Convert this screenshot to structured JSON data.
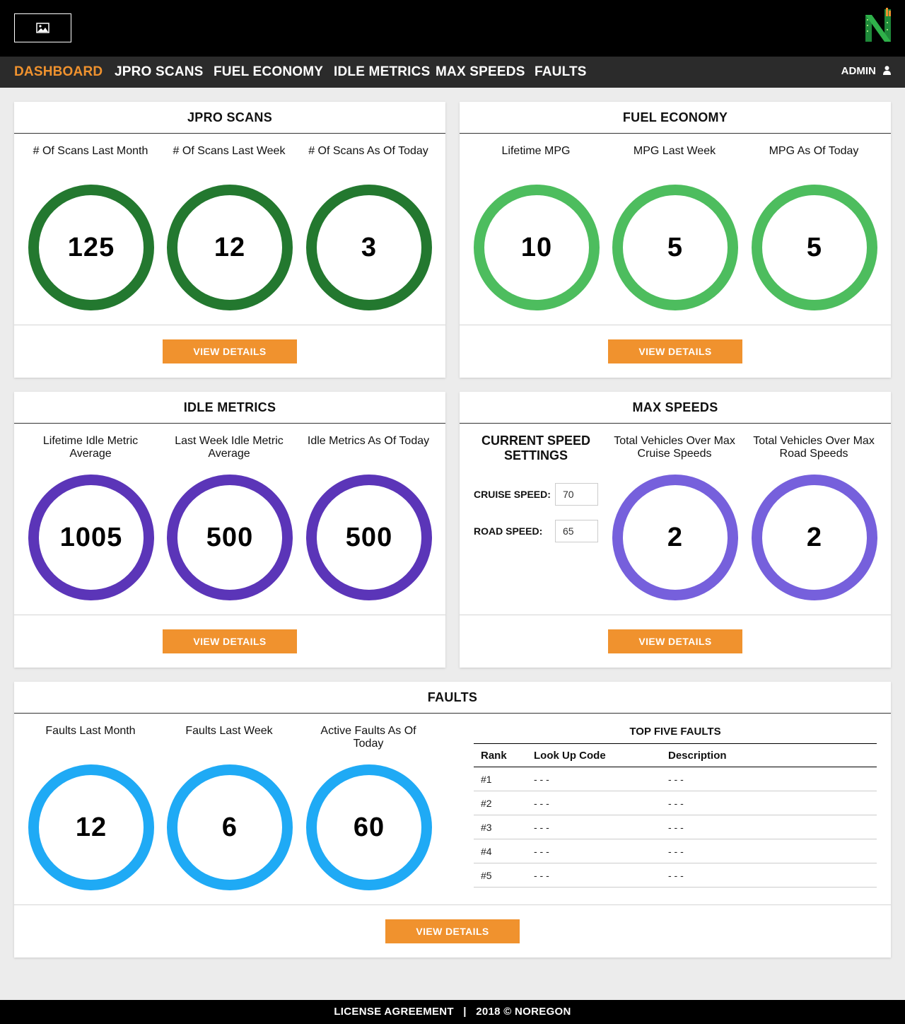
{
  "colors": {
    "accent": "#f0922e",
    "nav_bg": "#2b2b2b",
    "jpro_ring": "#23782f",
    "fuel_ring": "#4dbd5e",
    "idle_ring": "#5b35b8",
    "speed_ring": "#7660dc",
    "faults_ring": "#1faaf5"
  },
  "header": {
    "logo_icon": "image-placeholder-icon",
    "brand_icon": "noregon-n-icon"
  },
  "nav": {
    "items": [
      {
        "label": "DASHBOARD",
        "active": true
      },
      {
        "label": "JPRO SCANS"
      },
      {
        "label": "FUEL ECONOMY"
      },
      {
        "label": "IDLE METRICS"
      },
      {
        "label": "MAX SPEEDS"
      },
      {
        "label": "FAULTS"
      }
    ],
    "user_label": "ADMIN",
    "user_icon": "user-icon"
  },
  "jpro": {
    "title": "JPRO SCANS",
    "metrics": [
      {
        "label": "# Of Scans\nLast Month",
        "value": "125"
      },
      {
        "label": "# Of Scans\nLast Week",
        "value": "12"
      },
      {
        "label": "# Of Scans\nAs Of Today",
        "value": "3"
      }
    ],
    "button": "VIEW DETAILS"
  },
  "fuel": {
    "title": "FUEL ECONOMY",
    "metrics": [
      {
        "label": "Lifetime MPG",
        "value": "10"
      },
      {
        "label": "MPG\nLast Week",
        "value": "5"
      },
      {
        "label": "MPG\nAs Of Today",
        "value": "5"
      }
    ],
    "button": "VIEW DETAILS"
  },
  "idle": {
    "title": "IDLE METRICS",
    "metrics": [
      {
        "label": "Lifetime Idle\nMetric Average",
        "value": "1005"
      },
      {
        "label": "Last Week\nIdle Metric Average",
        "value": "500"
      },
      {
        "label": "Idle Metrics\nAs Of Today",
        "value": "500"
      }
    ],
    "button": "VIEW DETAILS"
  },
  "speeds": {
    "title": "MAX SPEEDS",
    "settings_heading": "CURRENT SPEED\nSETTINGS",
    "cruise_label": "CRUISE SPEED:",
    "cruise_value": "70",
    "road_label": "ROAD SPEED:",
    "road_value": "65",
    "metrics": [
      {
        "label": "Total Vehicles Over\nMax Cruise Speeds",
        "value": "2"
      },
      {
        "label": "Total Vehicles Over\nMax Road Speeds",
        "value": "2"
      }
    ],
    "button": "VIEW DETAILS"
  },
  "faults": {
    "title": "FAULTS",
    "metrics": [
      {
        "label": "Faults\nLast Month",
        "value": "12"
      },
      {
        "label": "Faults\nLast Week",
        "value": "6"
      },
      {
        "label": "Active Faults\nAs Of Today",
        "value": "60"
      }
    ],
    "top_five_title": "TOP FIVE FAULTS",
    "columns": [
      "Rank",
      "Look Up Code",
      "Description"
    ],
    "rows": [
      [
        "#1",
        "- - -",
        "- - -"
      ],
      [
        "#2",
        "- - -",
        "- - -"
      ],
      [
        "#3",
        "- - -",
        "- - -"
      ],
      [
        "#4",
        "- - -",
        "- - -"
      ],
      [
        "#5",
        "- - -",
        "- - -"
      ]
    ],
    "button": "VIEW DETAILS"
  },
  "footer": {
    "text": "LICENSE AGREEMENT   |   2018 © NOREGON"
  }
}
